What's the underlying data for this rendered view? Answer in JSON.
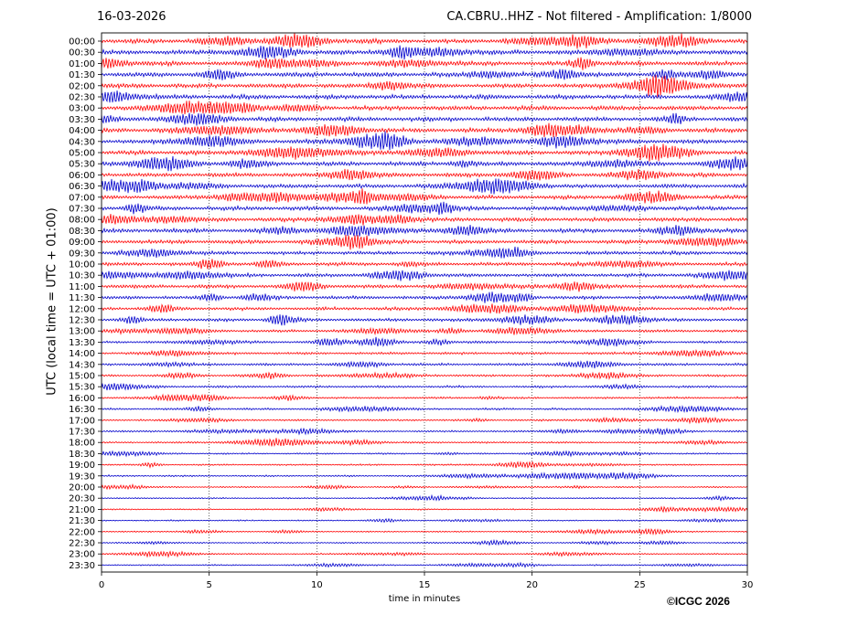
{
  "header": {
    "date": "16-03-2026",
    "title": "CA.CBRU..HHZ - Not filtered - Amplification: 1/8000"
  },
  "footer": {
    "copyright": "©ICGC 2026"
  },
  "chart_data": {
    "type": "line",
    "title": "CA.CBRU..HHZ - Not filtered - Amplification: 1/8000",
    "xlabel": "time in minutes",
    "ylabel": "UTC (local time = UTC + 01:00)",
    "xlim": [
      0,
      30
    ],
    "x_ticks": [
      "0",
      "5",
      "10",
      "15",
      "20",
      "25",
      "30"
    ],
    "grid": "vertical dotted lines at x ticks",
    "series_colors": [
      "#ff0000",
      "#0000cc"
    ],
    "color_pattern": "alternating per trace, starting red at 00:00",
    "traces": [
      "00:00",
      "00:30",
      "01:00",
      "01:30",
      "02:00",
      "02:30",
      "03:00",
      "03:30",
      "04:00",
      "04:30",
      "05:00",
      "05:30",
      "06:00",
      "06:30",
      "07:00",
      "07:30",
      "08:00",
      "08:30",
      "09:00",
      "09:30",
      "10:00",
      "10:30",
      "11:00",
      "11:30",
      "12:00",
      "12:30",
      "13:00",
      "13:30",
      "14:00",
      "14:30",
      "15:00",
      "15:30",
      "16:00",
      "16:30",
      "17:00",
      "17:30",
      "18:00",
      "18:30",
      "19:00",
      "19:30",
      "20:00",
      "20:30",
      "21:00",
      "21:30",
      "22:00",
      "22:30",
      "23:00",
      "23:30"
    ],
    "trace_amplitude_relative": [
      1.0,
      1.0,
      1.0,
      1.0,
      1.0,
      1.0,
      1.0,
      1.0,
      1.0,
      0.95,
      0.95,
      0.95,
      0.9,
      0.9,
      0.85,
      0.9,
      0.9,
      0.9,
      0.85,
      0.8,
      0.8,
      0.8,
      0.8,
      0.75,
      0.7,
      0.7,
      0.6,
      0.55,
      0.55,
      0.55,
      0.5,
      0.5,
      0.45,
      0.45,
      0.4,
      0.4,
      0.4,
      0.35,
      0.35,
      0.35,
      0.3,
      0.3,
      0.3,
      0.3,
      0.3,
      0.3,
      0.3,
      0.3
    ]
  }
}
